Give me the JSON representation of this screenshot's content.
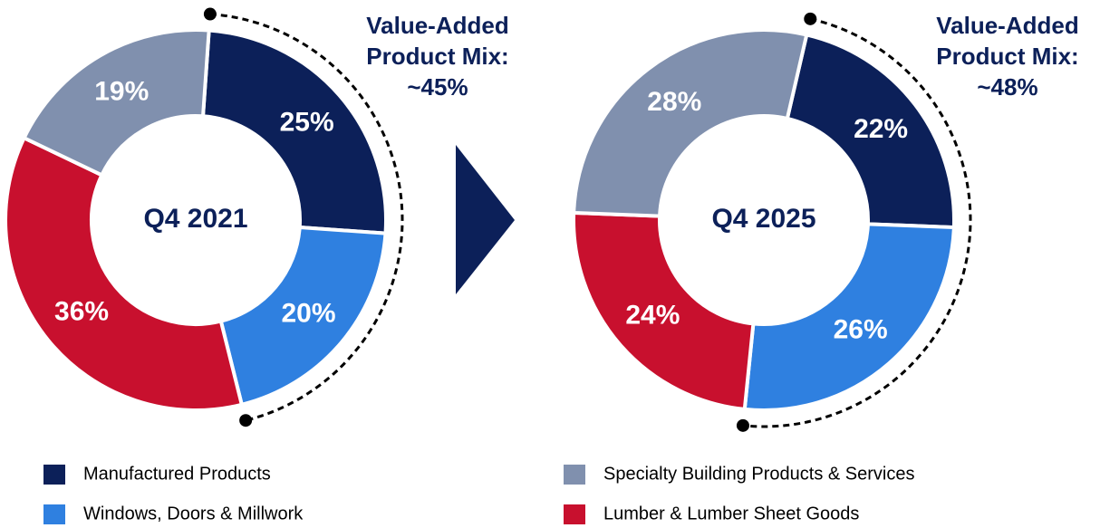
{
  "chart_data": [
    {
      "type": "pie",
      "center_label": "Q4 2021",
      "values": [
        25,
        20,
        36,
        19
      ],
      "value_labels": [
        "25%",
        "20%",
        "36%",
        "19%"
      ],
      "annotation": [
        "Value-Added",
        "Product Mix:",
        "~45%"
      ]
    },
    {
      "type": "pie",
      "center_label": "Q4 2025",
      "values": [
        22,
        26,
        24,
        28
      ],
      "value_labels": [
        "22%",
        "26%",
        "24%",
        "28%"
      ],
      "annotation": [
        "Value-Added",
        "Product Mix:",
        "~48%"
      ]
    }
  ],
  "legend": {
    "names": [
      "Manufactured Products",
      "Windows, Doors & Millwork",
      "Lumber & Lumber Sheet Goods",
      "Specialty Building Products & Services"
    ],
    "colors": [
      "#0c2059",
      "#2f80e0",
      "#c8102e",
      "#8090ae"
    ]
  }
}
